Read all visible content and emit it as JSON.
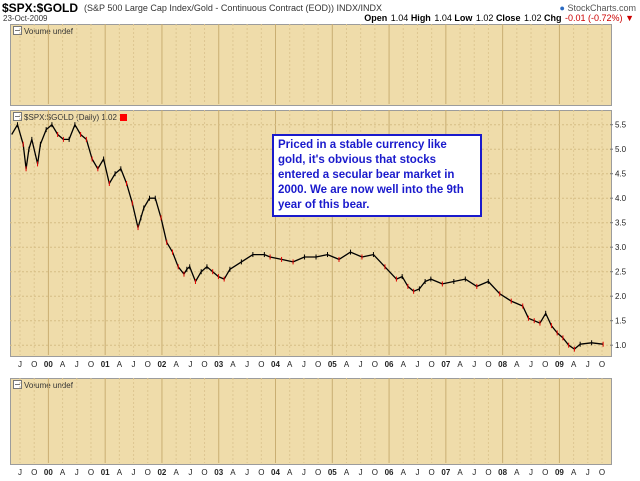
{
  "header": {
    "symbol": "$SPX:$GOLD",
    "description": "(S&P 500 Large Cap Index/Gold - Continuous Contract (EOD))  INDX/INDX",
    "date": "23-Oct-2009",
    "brand": "StockCharts.com",
    "ohlc": {
      "open_label": "Open",
      "open": "1.04",
      "high_label": "High",
      "high": "1.04",
      "low_label": "Low",
      "low": "1.02",
      "close_label": "Close",
      "close": "1.02",
      "chg_label": "Chg",
      "chg": "-0.01 (-0.72%)"
    }
  },
  "top_panel": {
    "label": "Volume undef"
  },
  "bottom_panel": {
    "label": "Volume undef"
  },
  "main_panel": {
    "label": "$SPX:$GOLD (Daily) 1.02"
  },
  "annotation": "Priced in a stable currency like gold, it's obvious that stocks entered a secular bear market in 2000. We are now well into the 9th year of this bear.",
  "colors": {
    "panel_bg": "#efdcaa",
    "grid": "#d8c08a",
    "price": "#000000",
    "down": "#ff0000",
    "note": "#1a1acc"
  },
  "chart_data": {
    "type": "line",
    "title": "$SPX:$GOLD (Daily) 1.02",
    "ylim": [
      0.8,
      5.8
    ],
    "yticks": [
      1.0,
      1.5,
      2.0,
      2.5,
      3.0,
      3.5,
      4.0,
      4.5,
      5.0,
      5.5
    ],
    "ytick_labels": [
      "1.0",
      "1.5",
      "2.0",
      "2.5",
      "3.0",
      "3.5",
      "4.0",
      "4.5",
      "5.0",
      "5.5"
    ],
    "xtick_labels": [
      "J",
      "O",
      "00",
      "A",
      "J",
      "O",
      "01",
      "A",
      "J",
      "O",
      "02",
      "A",
      "J",
      "O",
      "03",
      "A",
      "J",
      "O",
      "04",
      "A",
      "J",
      "O",
      "05",
      "A",
      "J",
      "O",
      "06",
      "A",
      "J",
      "O",
      "07",
      "A",
      "J",
      "O",
      "08",
      "A",
      "J",
      "O",
      "09",
      "A",
      "J",
      "O"
    ],
    "x": [
      1999.5,
      1999.6,
      1999.7,
      1999.75,
      1999.8,
      1999.85,
      1999.95,
      2000.0,
      2000.1,
      2000.2,
      2000.3,
      2000.4,
      2000.5,
      2000.6,
      2000.7,
      2000.8,
      2000.9,
      2001.0,
      2001.1,
      2001.2,
      2001.3,
      2001.4,
      2001.5,
      2001.6,
      2001.7,
      2001.75,
      2001.8,
      2001.9,
      2002.0,
      2002.1,
      2002.2,
      2002.3,
      2002.4,
      2002.5,
      2002.55,
      2002.6,
      2002.7,
      2002.8,
      2002.9,
      2003.0,
      2003.1,
      2003.2,
      2003.3,
      2003.5,
      2003.7,
      2003.9,
      2004.0,
      2004.2,
      2004.4,
      2004.6,
      2004.8,
      2005.0,
      2005.2,
      2005.4,
      2005.6,
      2005.8,
      2006.0,
      2006.2,
      2006.3,
      2006.4,
      2006.5,
      2006.6,
      2006.7,
      2006.8,
      2007.0,
      2007.2,
      2007.4,
      2007.6,
      2007.8,
      2008.0,
      2008.2,
      2008.4,
      2008.5,
      2008.6,
      2008.7,
      2008.8,
      2008.9,
      2009.0,
      2009.1,
      2009.2,
      2009.3,
      2009.4,
      2009.6,
      2009.8
    ],
    "y": [
      5.3,
      5.5,
      5.1,
      4.6,
      5.0,
      5.2,
      4.7,
      5.1,
      5.4,
      5.5,
      5.3,
      5.2,
      5.2,
      5.5,
      5.3,
      5.2,
      4.8,
      4.6,
      4.8,
      4.3,
      4.5,
      4.6,
      4.3,
      3.9,
      3.4,
      3.6,
      3.8,
      4.0,
      4.0,
      3.6,
      3.1,
      2.9,
      2.6,
      2.45,
      2.55,
      2.6,
      2.3,
      2.5,
      2.6,
      2.5,
      2.4,
      2.35,
      2.55,
      2.7,
      2.85,
      2.85,
      2.8,
      2.75,
      2.7,
      2.8,
      2.8,
      2.85,
      2.75,
      2.9,
      2.8,
      2.85,
      2.6,
      2.35,
      2.4,
      2.2,
      2.1,
      2.15,
      2.3,
      2.35,
      2.25,
      2.3,
      2.35,
      2.2,
      2.3,
      2.05,
      1.9,
      1.8,
      1.55,
      1.5,
      1.45,
      1.65,
      1.4,
      1.25,
      1.15,
      1.0,
      0.92,
      1.02,
      1.05,
      1.02
    ]
  }
}
